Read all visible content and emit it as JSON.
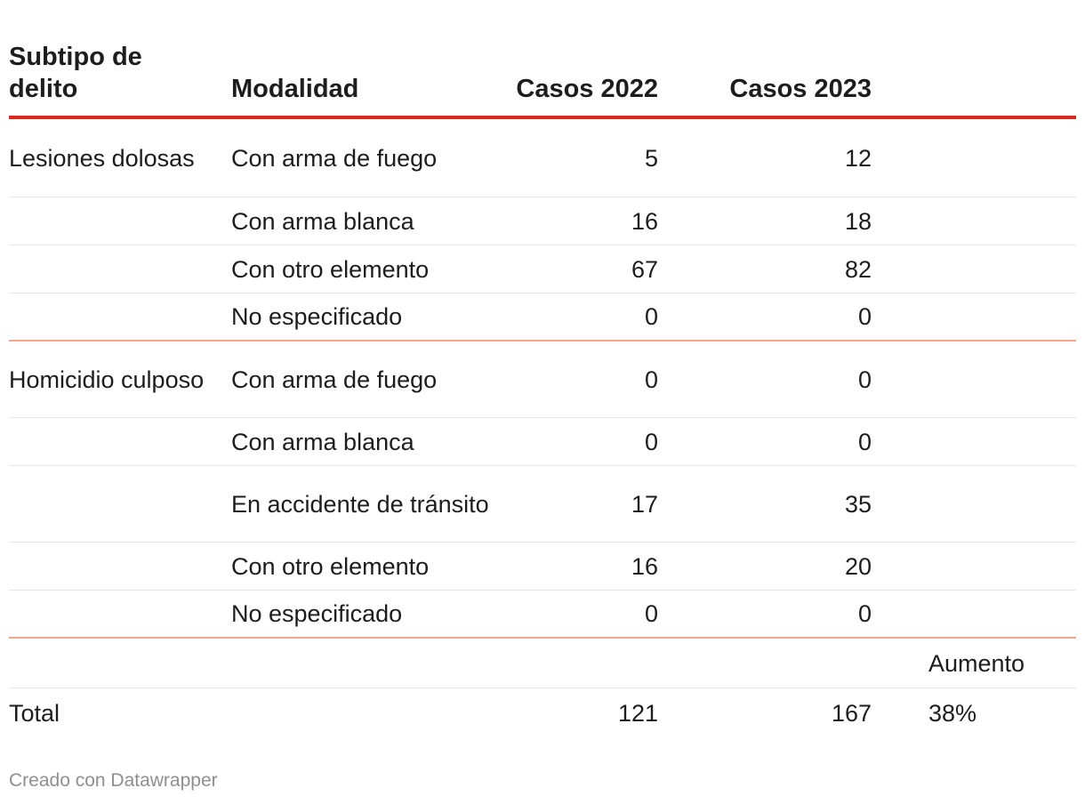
{
  "chart_data": {
    "type": "table",
    "columns": [
      "Subtipo de delito",
      "Modalidad",
      "Casos 2022",
      "Casos 2023",
      ""
    ],
    "rows": [
      {
        "subtipo": "Lesiones dolosas",
        "modalidad": "Con arma de fuego",
        "c2022": "5",
        "c2023": "12",
        "extra": ""
      },
      {
        "subtipo": "",
        "modalidad": "Con arma blanca",
        "c2022": "16",
        "c2023": "18",
        "extra": ""
      },
      {
        "subtipo": "",
        "modalidad": "Con otro elemento",
        "c2022": "67",
        "c2023": "82",
        "extra": ""
      },
      {
        "subtipo": "",
        "modalidad": "No especificado",
        "c2022": "0",
        "c2023": "0",
        "extra": ""
      },
      {
        "subtipo": "Homicidio culposo",
        "modalidad": "Con arma de fuego",
        "c2022": "0",
        "c2023": "0",
        "extra": ""
      },
      {
        "subtipo": "",
        "modalidad": "Con arma blanca",
        "c2022": "0",
        "c2023": "0",
        "extra": ""
      },
      {
        "subtipo": "",
        "modalidad": "En accidente de tránsito",
        "c2022": "17",
        "c2023": "35",
        "extra": ""
      },
      {
        "subtipo": "",
        "modalidad": "Con otro elemento",
        "c2022": "16",
        "c2023": "20",
        "extra": ""
      },
      {
        "subtipo": "",
        "modalidad": "No especificado",
        "c2022": "0",
        "c2023": "0",
        "extra": ""
      },
      {
        "subtipo": "",
        "modalidad": "",
        "c2022": "",
        "c2023": "",
        "extra": "Aumento"
      },
      {
        "subtipo": "Total",
        "modalidad": "",
        "c2022": "121",
        "c2023": "167",
        "extra": "38%"
      }
    ]
  },
  "credit": "Creado con Datawrapper",
  "colors": {
    "header_rule": "#d52a1d",
    "group_rule": "#f1a98c",
    "row_rule": "#e6e6e6",
    "credit": "#8f8f8f"
  }
}
